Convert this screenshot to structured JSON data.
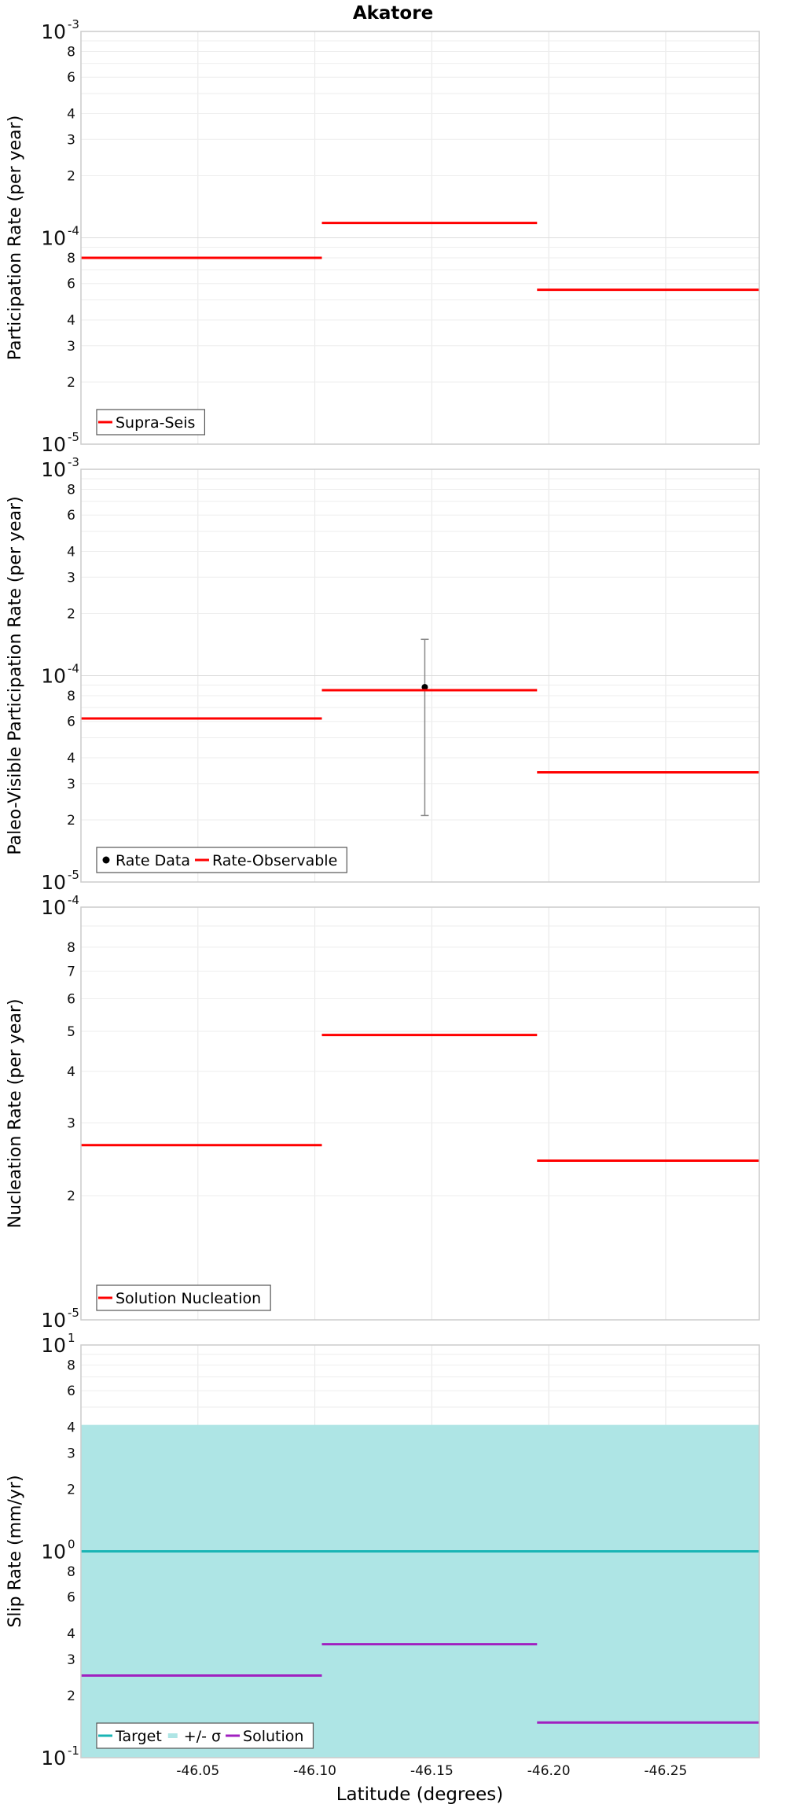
{
  "chart_data": [
    {
      "type": "line",
      "title": "Akatore",
      "ylabel": "Participation Rate (per year)",
      "xlabel": "",
      "xlim": [
        -46.0,
        -46.29
      ],
      "xticks": [
        -46.05,
        -46.1,
        -46.15,
        -46.2,
        -46.25
      ],
      "yscale": "log",
      "ylim": [
        1e-05,
        0.001
      ],
      "grid": true,
      "legend": {
        "position": "bottom-left",
        "entries": [
          "Supra-Seis"
        ]
      },
      "series": [
        {
          "name": "Supra-Seis",
          "color": "#ff0000",
          "kind": "steps",
          "segments": [
            {
              "x": [
                -46.0,
                -46.103
              ],
              "y": 8e-05
            },
            {
              "x": [
                -46.103,
                -46.195
              ],
              "y": 0.000118
            },
            {
              "x": [
                -46.195,
                -46.29
              ],
              "y": 5.6e-05
            }
          ]
        }
      ]
    },
    {
      "type": "line",
      "title": "",
      "ylabel": "Paleo-Visible Participation Rate (per year)",
      "xlabel": "",
      "xlim": [
        -46.0,
        -46.29
      ],
      "xticks": [
        -46.05,
        -46.1,
        -46.15,
        -46.2,
        -46.25
      ],
      "yscale": "log",
      "ylim": [
        1e-05,
        0.001
      ],
      "grid": true,
      "legend": {
        "position": "bottom-left",
        "entries": [
          "Rate Data",
          "Rate-Observable"
        ]
      },
      "series": [
        {
          "name": "Rate Data",
          "color": "#000000",
          "kind": "points",
          "points": [
            {
              "x": -46.147,
              "y": 8.8e-05,
              "ylow": 2.1e-05,
              "yhigh": 0.00015
            }
          ]
        },
        {
          "name": "Rate-Observable",
          "color": "#ff0000",
          "kind": "steps",
          "segments": [
            {
              "x": [
                -46.0,
                -46.103
              ],
              "y": 6.2e-05
            },
            {
              "x": [
                -46.103,
                -46.195
              ],
              "y": 8.5e-05
            },
            {
              "x": [
                -46.195,
                -46.29
              ],
              "y": 3.4e-05
            }
          ]
        }
      ]
    },
    {
      "type": "line",
      "title": "",
      "ylabel": "Nucleation Rate (per year)",
      "xlabel": "",
      "xlim": [
        -46.0,
        -46.29
      ],
      "xticks": [
        -46.05,
        -46.1,
        -46.15,
        -46.2,
        -46.25
      ],
      "yscale": "log",
      "ylim": [
        1e-05,
        0.0001
      ],
      "grid": true,
      "legend": {
        "position": "bottom-left",
        "entries": [
          "Solution Nucleation"
        ]
      },
      "series": [
        {
          "name": "Solution Nucleation",
          "color": "#ff0000",
          "kind": "steps",
          "segments": [
            {
              "x": [
                -46.0,
                -46.103
              ],
              "y": 2.65e-05
            },
            {
              "x": [
                -46.103,
                -46.195
              ],
              "y": 4.9e-05
            },
            {
              "x": [
                -46.195,
                -46.29
              ],
              "y": 2.43e-05
            }
          ]
        }
      ]
    },
    {
      "type": "line",
      "title": "",
      "ylabel": "Slip Rate (mm/yr)",
      "xlabel": "Latitude (degrees)",
      "xlim": [
        -46.0,
        -46.29
      ],
      "xticks": [
        -46.05,
        -46.1,
        -46.15,
        -46.2,
        -46.25
      ],
      "yscale": "log",
      "ylim": [
        0.1,
        10
      ],
      "grid": true,
      "legend": {
        "position": "bottom-left",
        "entries": [
          "Target",
          "+/- σ",
          "Solution"
        ]
      },
      "series": [
        {
          "name": "+/- σ",
          "color": "#aee5e5",
          "kind": "band",
          "band": {
            "x": [
              -46.0,
              -46.29
            ],
            "ylow": 0.1,
            "yhigh": 4.1
          }
        },
        {
          "name": "Target",
          "color": "#1ab4b4",
          "kind": "steps",
          "segments": [
            {
              "x": [
                -46.0,
                -46.29
              ],
              "y": 1.0
            }
          ]
        },
        {
          "name": "Solution",
          "color": "#a020c0",
          "kind": "steps",
          "segments": [
            {
              "x": [
                -46.0,
                -46.103
              ],
              "y": 0.25
            },
            {
              "x": [
                -46.103,
                -46.195
              ],
              "y": 0.355
            },
            {
              "x": [
                -46.195,
                -46.29
              ],
              "y": 0.148
            }
          ]
        }
      ]
    }
  ],
  "labels": {
    "panel_ticks": [
      {
        "majors": [
          {
            "base": "10",
            "exp": "-3"
          },
          {
            "base": "10",
            "exp": "-4"
          },
          {
            "base": "10",
            "exp": "-5"
          }
        ],
        "minors": [
          "8",
          "6",
          "4",
          "3",
          "2",
          "8",
          "6",
          "4",
          "3",
          "2"
        ]
      },
      {
        "majors": [
          {
            "base": "10",
            "exp": "-3"
          },
          {
            "base": "10",
            "exp": "-4"
          },
          {
            "base": "10",
            "exp": "-5"
          }
        ],
        "minors": [
          "8",
          "6",
          "4",
          "3",
          "2",
          "8",
          "6",
          "4",
          "3",
          "2"
        ]
      },
      {
        "majors": [
          {
            "base": "10",
            "exp": "-4"
          },
          {
            "base": "10",
            "exp": "-5"
          }
        ],
        "minors": [
          "8",
          "7",
          "6",
          "5",
          "4",
          "3",
          "2"
        ]
      },
      {
        "majors": [
          {
            "base": "10",
            "exp": "1"
          },
          {
            "base": "10",
            "exp": "0"
          },
          {
            "base": "10",
            "exp": "-1"
          }
        ],
        "minors": [
          "8",
          "6",
          "4",
          "3",
          "2",
          "8",
          "6",
          "4",
          "3",
          "2"
        ]
      }
    ],
    "xtick_labels": [
      "-46.05",
      "-46.10",
      "-46.15",
      "-46.20",
      "-46.25"
    ]
  }
}
